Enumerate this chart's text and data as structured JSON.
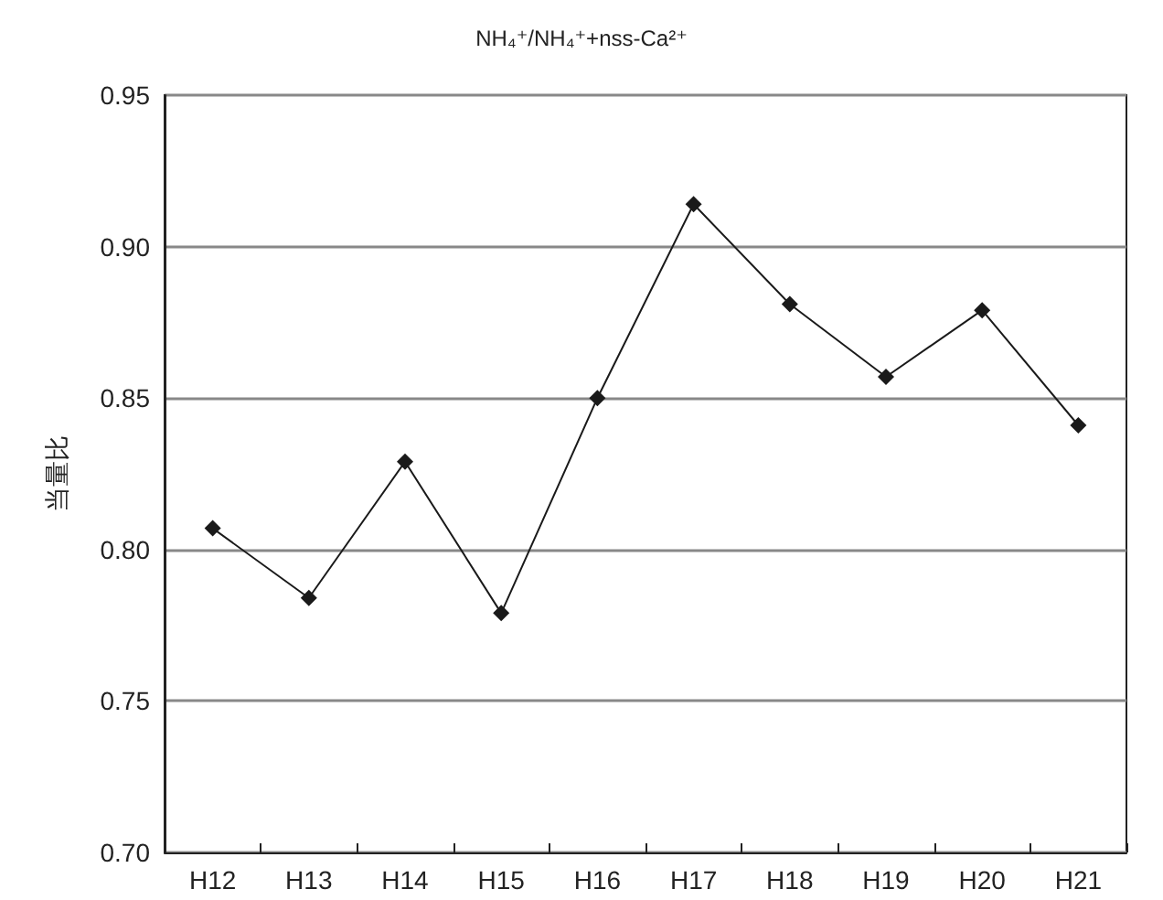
{
  "chart_data": {
    "type": "line",
    "title": "NH₄⁺/NH₄⁺+nss-Ca²⁺",
    "ylabel": "当量比",
    "categories": [
      "H12",
      "H13",
      "H14",
      "H15",
      "H16",
      "H17",
      "H18",
      "H19",
      "H20",
      "H21"
    ],
    "series": [
      {
        "color": "#1a1a1a",
        "values": [
          0.807,
          0.784,
          0.829,
          0.779,
          0.85,
          0.914,
          0.881,
          0.857,
          0.879,
          0.841
        ]
      }
    ],
    "ylim": [
      0.7,
      0.95
    ],
    "yticks": [
      {
        "value": 0.7,
        "label": "0.70"
      },
      0.75,
      {
        "value": 0.8,
        "label": "0.80"
      },
      0.85,
      {
        "value": 0.9,
        "label": "0.90"
      },
      0.95
    ],
    "grid": "y",
    "marker": "diamond",
    "line_style": "solid"
  }
}
